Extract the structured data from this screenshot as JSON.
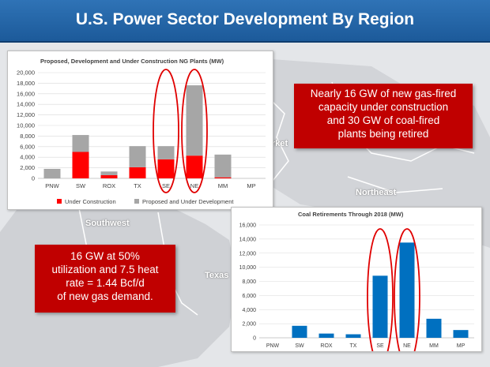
{
  "header": {
    "title": "U.S. Power Sector Development By Region"
  },
  "map": {
    "labels": [
      "rket",
      "Northeast",
      "Southwest",
      "Texas"
    ]
  },
  "callouts": {
    "gas": {
      "lines": [
        "Nearly 16 GW of new gas-fired",
        "capacity under construction",
        "and 30 GW of coal-fired",
        "plants being retired"
      ]
    },
    "demand": {
      "lines": [
        "16 GW at 50%",
        "utilization and 7.5 heat",
        "rate = 1.44 Bcf/d",
        "of new gas demand."
      ]
    }
  },
  "colors": {
    "under_construction": "#ff0000",
    "proposed": "#a6a6a6",
    "coal_bar": "#0070c0",
    "highlight": "#e00000",
    "callout_bg": "#c00000",
    "header_bg": "#2369ab"
  },
  "chart_data": [
    {
      "type": "bar",
      "stacked": true,
      "title": "Proposed, Development and Under Construction NG Plants (MW)",
      "categories": [
        "PNW",
        "SW",
        "ROX",
        "TX",
        "SE",
        "NE",
        "MM",
        "MP"
      ],
      "series": [
        {
          "name": "Under Construction",
          "values": [
            0,
            5000,
            600,
            2100,
            3600,
            4300,
            200,
            0
          ]
        },
        {
          "name": "Proposed and Under Development",
          "values": [
            1800,
            3200,
            700,
            4000,
            2500,
            13300,
            4300,
            0
          ]
        }
      ],
      "ylim": [
        0,
        20000
      ],
      "yticks": [
        "0",
        "2,000",
        "4,000",
        "6,000",
        "8,000",
        "10,000",
        "12,000",
        "14,000",
        "16,000",
        "18,000",
        "20,000"
      ],
      "legend": "bottom",
      "grid": true,
      "highlighted": [
        "SE",
        "NE"
      ]
    },
    {
      "type": "bar",
      "title": "Coal Retirements Through 2018 (MW)",
      "categories": [
        "PNW",
        "SW",
        "ROX",
        "TX",
        "SE",
        "NE",
        "MM",
        "MP"
      ],
      "values": [
        0,
        1700,
        600,
        500,
        8800,
        13500,
        2700,
        1100
      ],
      "ylim": [
        0,
        16000
      ],
      "yticks": [
        "0",
        "2,000",
        "4,000",
        "6,000",
        "8,000",
        "10,000",
        "12,000",
        "14,000",
        "16,000"
      ],
      "grid": true,
      "highlighted": [
        "SE",
        "NE"
      ]
    }
  ]
}
